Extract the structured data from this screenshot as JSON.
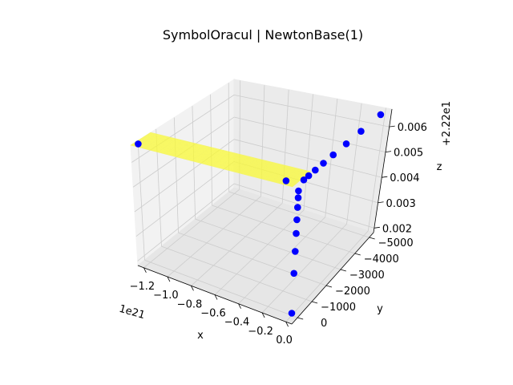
{
  "chart_data": {
    "type": "scatter",
    "projection": "3d",
    "title": "SymbolOracul | NewtonBase(1)",
    "xlabel": "x",
    "ylabel": "y",
    "zlabel": "z",
    "x_offset_text": "1e21",
    "z_offset_text": "+2.22e1",
    "xlim": [
      -1.25e+21,
      5e+19
    ],
    "ylim": [
      -5300,
      400
    ],
    "zlim": [
      0.00182,
      0.0067
    ],
    "x_ticks": [
      -1.2e+21,
      -1e+21,
      -8e+20,
      -6e+20,
      -4e+20,
      -2e+20,
      0.0
    ],
    "x_tick_labels": [
      "−1.2",
      "−1.0",
      "−0.8",
      "−0.6",
      "−0.4",
      "−0.2",
      "0.0"
    ],
    "y_ticks": [
      -5000,
      -4000,
      -3000,
      -2000,
      -1000,
      0
    ],
    "y_tick_labels": [
      "−5000",
      "−4000",
      "−3000",
      "−2000",
      "−1000",
      "0"
    ],
    "z_ticks": [
      0.002,
      0.003,
      0.004,
      0.005,
      0.006
    ],
    "z_tick_labels": [
      "0.002",
      "0.003",
      "0.004",
      "0.005",
      "0.006"
    ],
    "grid": true,
    "colors": {
      "points": "#0000ff",
      "surface": "#ffff00",
      "surface_edge": "#f3f36a",
      "pane_left": "#f2f2f2",
      "pane_back": "#ebebeb",
      "pane_floor": "#e6e6e6",
      "grid": "#cccccc",
      "outline": "#000000"
    },
    "plane": {
      "type": "surface",
      "x_range": [
        -1.25e+21,
        0.0
      ],
      "y_range": [
        -700,
        400
      ],
      "z": 0.0067
    },
    "points": [
      {
        "x": -1.22e+21,
        "y": 200,
        "z": 0.0067
      },
      {
        "x": -1e+20,
        "y": 0,
        "z": 0.0066
      },
      {
        "x": 0.0,
        "y": -300,
        "z": 0.0066
      },
      {
        "x": 0.0,
        "y": -600,
        "z": 0.0066
      },
      {
        "x": 0.0,
        "y": -1000,
        "z": 0.0066
      },
      {
        "x": 0.0,
        "y": -1500,
        "z": 0.0066
      },
      {
        "x": 0.0,
        "y": -2100,
        "z": 0.0066
      },
      {
        "x": 0.0,
        "y": -2900,
        "z": 0.0066
      },
      {
        "x": 0.0,
        "y": -3800,
        "z": 0.0066
      },
      {
        "x": 0.0,
        "y": -5000,
        "z": 0.0066
      },
      {
        "x": 0.0,
        "y": 0,
        "z": 0.00635
      },
      {
        "x": 0.0,
        "y": 0,
        "z": 0.0061
      },
      {
        "x": 0.0,
        "y": 0,
        "z": 0.00575
      },
      {
        "x": 0.0,
        "y": 0,
        "z": 0.0053
      },
      {
        "x": 0.0,
        "y": 0,
        "z": 0.0048
      },
      {
        "x": 0.0,
        "y": 0,
        "z": 0.00415
      },
      {
        "x": 0.0,
        "y": 0,
        "z": 0.00335
      },
      {
        "x": 0.0,
        "y": 0,
        "z": 0.0019
      }
    ]
  }
}
